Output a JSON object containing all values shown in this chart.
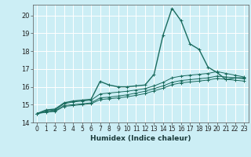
{
  "xlabel": "Humidex (Indice chaleur)",
  "background_color": "#cceef5",
  "grid_color": "#ffffff",
  "line_color": "#1a6b5e",
  "xlim": [
    -0.5,
    23.5
  ],
  "ylim": [
    14.0,
    20.6
  ],
  "yticks": [
    14,
    15,
    16,
    17,
    18,
    19,
    20
  ],
  "xticks": [
    0,
    1,
    2,
    3,
    4,
    5,
    6,
    7,
    8,
    9,
    10,
    11,
    12,
    13,
    14,
    15,
    16,
    17,
    18,
    19,
    20,
    21,
    22,
    23
  ],
  "series": [
    [
      14.5,
      14.7,
      14.75,
      15.1,
      15.2,
      15.25,
      15.3,
      16.3,
      16.1,
      16.0,
      16.0,
      16.05,
      16.1,
      16.7,
      18.9,
      20.4,
      19.7,
      18.4,
      18.1,
      17.1,
      16.8,
      16.4,
      16.5,
      16.5
    ],
    [
      14.5,
      14.65,
      14.7,
      15.05,
      15.15,
      15.2,
      15.25,
      15.6,
      15.65,
      15.7,
      15.75,
      15.82,
      15.9,
      16.05,
      16.25,
      16.5,
      16.6,
      16.65,
      16.7,
      16.75,
      16.85,
      16.75,
      16.65,
      16.55
    ],
    [
      14.5,
      14.6,
      14.65,
      14.95,
      15.0,
      15.05,
      15.1,
      15.38,
      15.42,
      15.48,
      15.55,
      15.65,
      15.75,
      15.9,
      16.05,
      16.25,
      16.35,
      16.4,
      16.45,
      16.5,
      16.6,
      16.55,
      16.5,
      16.45
    ],
    [
      14.5,
      14.57,
      14.62,
      14.9,
      14.95,
      15.0,
      15.05,
      15.28,
      15.33,
      15.38,
      15.44,
      15.52,
      15.62,
      15.77,
      15.92,
      16.12,
      16.22,
      16.27,
      16.32,
      16.38,
      16.47,
      16.42,
      16.37,
      16.32
    ]
  ],
  "xlabel_fontsize": 6.5,
  "tick_fontsize": 5.5,
  "ytick_fontsize": 6.0
}
